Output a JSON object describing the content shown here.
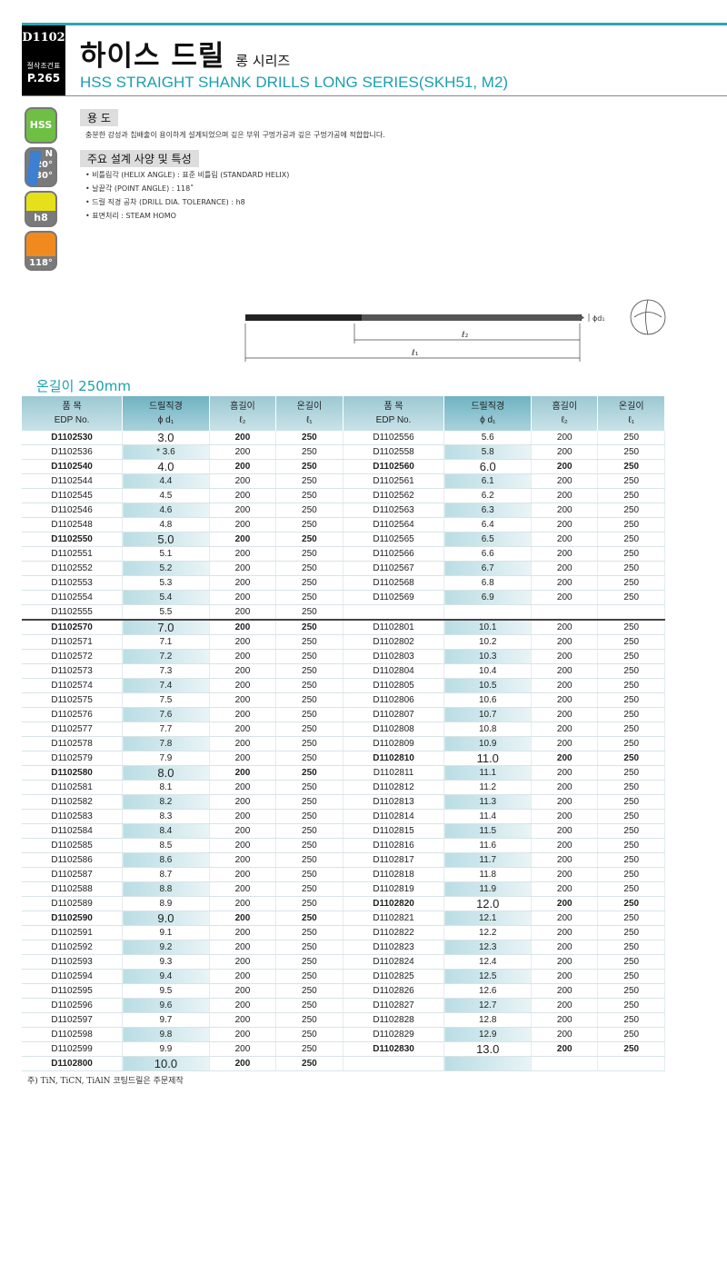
{
  "header": {
    "code": "D1102",
    "side_label": "절삭조건표",
    "page_ref": "P.265",
    "title": "하이스 드릴",
    "title_suffix": "롱 시리즈",
    "subtitle": "HSS STRAIGHT SHANK DRILLS LONG SERIES(SKH51, M2)"
  },
  "icons": {
    "hss": "HSS",
    "helix_n": "N",
    "helix_a": "20°",
    "helix_b": "30°",
    "tolerance": "h8",
    "point": "118°"
  },
  "usage": {
    "heading": "용 도",
    "text": "충분한 강성과 칩배출이 용이하게 설계되었으며 깊은 부위 구멍가공과 깊은 구멍가공에 적합합니다."
  },
  "features": {
    "heading": "주요 설계 사양 및 특성",
    "items": [
      "• 비틀림각 (HELIX ANGLE) : 표준 비틀림 (STANDARD HELIX)",
      "• 날끝각 (POINT ANGLE) : 118˚",
      "• 드릴 직경 공차 (DRILL DIA. TOLERANCE) : h8",
      "• 표면처리 : STEAM HOMO"
    ]
  },
  "diagram": {
    "d1": "ϕd₁",
    "l2": "ℓ₂",
    "l1": "ℓ₁"
  },
  "table": {
    "heading": "온길이 250mm",
    "headers": [
      [
        "품  목",
        "EDP No."
      ],
      [
        "드릴직경",
        "ϕ d₁"
      ],
      [
        "홈길이",
        "ℓ₂"
      ],
      [
        "온길이",
        "ℓ₁"
      ]
    ],
    "left": [
      [
        "D1102530",
        "3.0"
      ],
      [
        "D1102536",
        "* 3.6"
      ],
      [
        "D1102540",
        "4.0"
      ],
      [
        "D1102544",
        "4.4"
      ],
      [
        "D1102545",
        "4.5"
      ],
      [
        "D1102546",
        "4.6"
      ],
      [
        "D1102548",
        "4.8"
      ],
      [
        "D1102550",
        "5.0"
      ],
      [
        "D1102551",
        "5.1"
      ],
      [
        "D1102552",
        "5.2"
      ],
      [
        "D1102553",
        "5.3"
      ],
      [
        "D1102554",
        "5.4"
      ],
      [
        "D1102555",
        "5.5"
      ],
      [
        "D1102570",
        "7.0"
      ],
      [
        "D1102571",
        "7.1"
      ],
      [
        "D1102572",
        "7.2"
      ],
      [
        "D1102573",
        "7.3"
      ],
      [
        "D1102574",
        "7.4"
      ],
      [
        "D1102575",
        "7.5"
      ],
      [
        "D1102576",
        "7.6"
      ],
      [
        "D1102577",
        "7.7"
      ],
      [
        "D1102578",
        "7.8"
      ],
      [
        "D1102579",
        "7.9"
      ],
      [
        "D1102580",
        "8.0"
      ],
      [
        "D1102581",
        "8.1"
      ],
      [
        "D1102582",
        "8.2"
      ],
      [
        "D1102583",
        "8.3"
      ],
      [
        "D1102584",
        "8.4"
      ],
      [
        "D1102585",
        "8.5"
      ],
      [
        "D1102586",
        "8.6"
      ],
      [
        "D1102587",
        "8.7"
      ],
      [
        "D1102588",
        "8.8"
      ],
      [
        "D1102589",
        "8.9"
      ],
      [
        "D1102590",
        "9.0"
      ],
      [
        "D1102591",
        "9.1"
      ],
      [
        "D1102592",
        "9.2"
      ],
      [
        "D1102593",
        "9.3"
      ],
      [
        "D1102594",
        "9.4"
      ],
      [
        "D1102595",
        "9.5"
      ],
      [
        "D1102596",
        "9.6"
      ],
      [
        "D1102597",
        "9.7"
      ],
      [
        "D1102598",
        "9.8"
      ],
      [
        "D1102599",
        "9.9"
      ],
      [
        "D1102800",
        "10.0"
      ]
    ],
    "right": [
      [
        "D1102556",
        "5.6"
      ],
      [
        "D1102558",
        "5.8"
      ],
      [
        "D1102560",
        "6.0"
      ],
      [
        "D1102561",
        "6.1"
      ],
      [
        "D1102562",
        "6.2"
      ],
      [
        "D1102563",
        "6.3"
      ],
      [
        "D1102564",
        "6.4"
      ],
      [
        "D1102565",
        "6.5"
      ],
      [
        "D1102566",
        "6.6"
      ],
      [
        "D1102567",
        "6.7"
      ],
      [
        "D1102568",
        "6.8"
      ],
      [
        "D1102569",
        "6.9"
      ],
      null,
      [
        "D1102801",
        "10.1"
      ],
      [
        "D1102802",
        "10.2"
      ],
      [
        "D1102803",
        "10.3"
      ],
      [
        "D1102804",
        "10.4"
      ],
      [
        "D1102805",
        "10.5"
      ],
      [
        "D1102806",
        "10.6"
      ],
      [
        "D1102807",
        "10.7"
      ],
      [
        "D1102808",
        "10.8"
      ],
      [
        "D1102809",
        "10.9"
      ],
      [
        "D1102810",
        "11.0"
      ],
      [
        "D1102811",
        "11.1"
      ],
      [
        "D1102812",
        "11.2"
      ],
      [
        "D1102813",
        "11.3"
      ],
      [
        "D1102814",
        "11.4"
      ],
      [
        "D1102815",
        "11.5"
      ],
      [
        "D1102816",
        "11.6"
      ],
      [
        "D1102817",
        "11.7"
      ],
      [
        "D1102818",
        "11.8"
      ],
      [
        "D1102819",
        "11.9"
      ],
      [
        "D1102820",
        "12.0"
      ],
      [
        "D1102821",
        "12.1"
      ],
      [
        "D1102822",
        "12.2"
      ],
      [
        "D1102823",
        "12.3"
      ],
      [
        "D1102824",
        "12.4"
      ],
      [
        "D1102825",
        "12.5"
      ],
      [
        "D1102826",
        "12.6"
      ],
      [
        "D1102827",
        "12.7"
      ],
      [
        "D1102828",
        "12.8"
      ],
      [
        "D1102829",
        "12.9"
      ],
      [
        "D1102830",
        "13.0"
      ],
      null
    ],
    "flute_length": "200",
    "overall_length": "250"
  },
  "footnote": "주) TiN, TiCN, TiAlN 코팅드릴은 주문제작"
}
